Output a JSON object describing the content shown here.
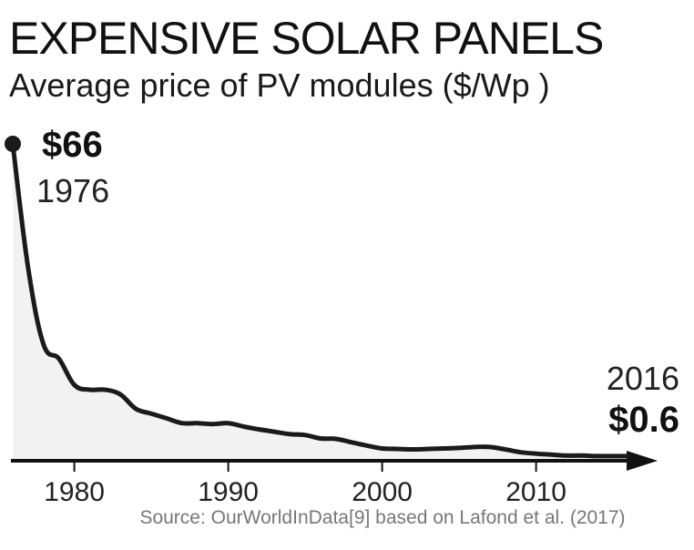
{
  "chart_data": {
    "type": "area",
    "title": "EXPENSIVE SOLAR PANELS",
    "subtitle": "Average price of PV modules ($/Wp )",
    "x": [
      1976,
      1977,
      1978,
      1979,
      1980,
      1981,
      1982,
      1983,
      1984,
      1985,
      1986,
      1987,
      1988,
      1989,
      1990,
      1991,
      1992,
      1993,
      1994,
      1995,
      1996,
      1997,
      1998,
      1999,
      2000,
      2001,
      2002,
      2003,
      2004,
      2005,
      2006,
      2007,
      2008,
      2009,
      2010,
      2011,
      2012,
      2013,
      2014,
      2015,
      2016
    ],
    "values": [
      66,
      40,
      24,
      21,
      15.5,
      14.5,
      14.5,
      13.5,
      10.5,
      9.5,
      8.5,
      7.5,
      7.5,
      7.3,
      7.5,
      6.8,
      6.2,
      5.7,
      5.2,
      5,
      4.3,
      4.2,
      3.5,
      2.8,
      2.2,
      2.1,
      2.0,
      2.1,
      2.2,
      2.3,
      2.5,
      2.5,
      2.0,
      1.4,
      1.1,
      0.9,
      0.7,
      0.7,
      0.6,
      0.6,
      0.6
    ],
    "xticks": [
      "1980",
      "1990",
      "2000",
      "2010"
    ],
    "xtick_values": [
      1980,
      1990,
      2000,
      2010
    ],
    "xlim": [
      1976,
      2016
    ],
    "ylim": [
      0,
      66
    ],
    "xlabel": "",
    "ylabel": "",
    "grid": false,
    "annotations": {
      "start_value": "$66",
      "start_year": "1976",
      "end_year": "2016",
      "end_value": "$0.6"
    },
    "source": "Source: OurWorldInData[9] based on Lafond et al. (2017)",
    "colors": {
      "line": "#1a1a1a",
      "fill": "#f2f2f2",
      "source_text": "#777777"
    }
  }
}
